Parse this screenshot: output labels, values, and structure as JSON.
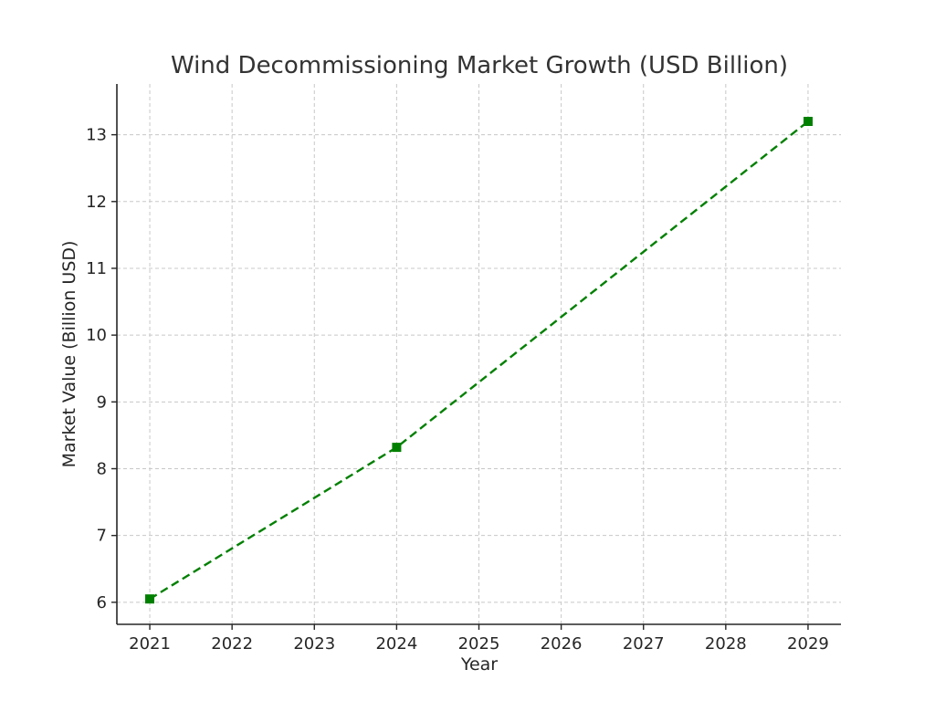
{
  "chart_data": {
    "type": "line",
    "title": "Wind Decommissioning Market Growth (USD Billion)",
    "xlabel": "Year",
    "ylabel": "Market Value (Billion USD)",
    "x": [
      2021,
      2024,
      2029
    ],
    "series": [
      {
        "values": [
          6.05,
          8.32,
          13.2
        ],
        "color": "#008000",
        "line_style": "dashed",
        "marker": "square"
      }
    ],
    "xticks": [
      2021,
      2022,
      2023,
      2024,
      2025,
      2026,
      2027,
      2028,
      2029
    ],
    "yticks": [
      6,
      7,
      8,
      9,
      10,
      11,
      12,
      13
    ],
    "xlim": [
      2020.6,
      2029.4
    ],
    "ylim": [
      5.67,
      13.76
    ],
    "grid": true,
    "legend": "none"
  }
}
